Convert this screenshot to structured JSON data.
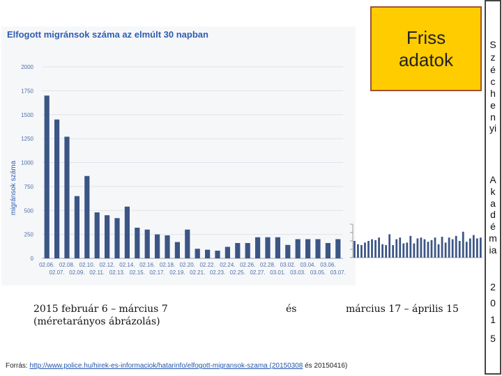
{
  "chart_data": {
    "type": "bar",
    "title": "Elfogott migránsok száma az elmúlt 30 napban",
    "ylabel": "migránsok száma",
    "xlabel": "",
    "ylim": [
      0,
      2000
    ],
    "yticks": [
      "0",
      "250",
      "500",
      "750",
      "1000",
      "1250",
      "1500",
      "1750",
      "2000"
    ],
    "grid": true,
    "categories": [
      "02.06.",
      "02.07.",
      "02.08.",
      "02.09.",
      "02.10.",
      "02.11.",
      "02.12.",
      "02.13.",
      "02.14.",
      "02.15.",
      "02.16.",
      "02.17.",
      "02.18.",
      "02.19.",
      "02.20.",
      "02.21.",
      "02.22.",
      "02.23.",
      "02.24.",
      "02.25.",
      "02.26.",
      "02.27.",
      "02.28.",
      "03.01.",
      "03.02.",
      "03.03.",
      "03.04.",
      "03.05.",
      "03.06.",
      "03.07."
    ],
    "values": [
      1700,
      1450,
      1270,
      650,
      860,
      480,
      450,
      420,
      540,
      320,
      300,
      250,
      240,
      170,
      300,
      100,
      90,
      80,
      120,
      160,
      160,
      220,
      220,
      220,
      140,
      200,
      200,
      200,
      160,
      200
    ],
    "color": "#3b5585"
  },
  "mini_chart": {
    "values": [
      200,
      160,
      150,
      180,
      200,
      220,
      210,
      240,
      160,
      150,
      280,
      150,
      220,
      240,
      170,
      180,
      260,
      170,
      230,
      240,
      220,
      190,
      210,
      240,
      160,
      250,
      180,
      240,
      220,
      260,
      200,
      310,
      190,
      230,
      270,
      230,
      240
    ]
  },
  "friss": {
    "line1": "Friss",
    "line2": "adatok"
  },
  "side_label": [
    "S",
    "z",
    "é",
    "c",
    "h",
    "e",
    "n",
    "yi",
    "A",
    "k",
    "a",
    "d",
    "é",
    "m",
    "ia",
    "2",
    "0",
    "1",
    "5"
  ],
  "captions": {
    "range1_line1": "2015 február 6 – március 7",
    "range1_line2": "(méretarányos ábrázolás)",
    "and": "és",
    "range2": "március 17 – április 15"
  },
  "source": {
    "prefix": "Forrás: ",
    "link": "http://www.police.hu/hirek-es-informaciok/hatarinfo/elfogott-migransok-szama (20150308",
    "suffix": " és 20150416)"
  }
}
